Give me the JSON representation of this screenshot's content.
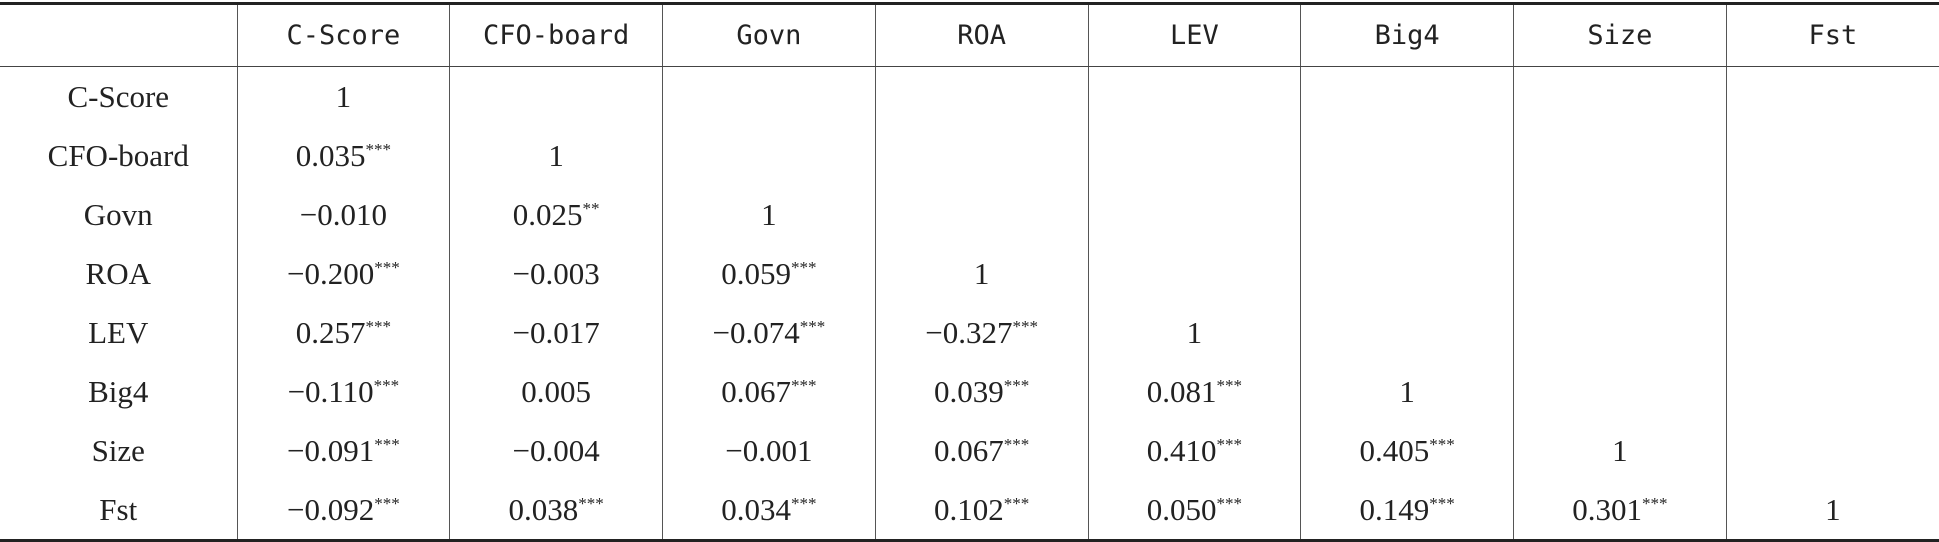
{
  "table": {
    "columns": [
      "C-Score",
      "CFO-board",
      "Govn",
      "ROA",
      "LEV",
      "Big4",
      "Size",
      "Fst"
    ],
    "rows": [
      {
        "label": "C-Score",
        "cells": [
          {
            "value": "1"
          }
        ]
      },
      {
        "label": "CFO-board",
        "cells": [
          {
            "value": "0.035",
            "stars": "***"
          },
          {
            "value": "1"
          }
        ]
      },
      {
        "label": "Govn",
        "cells": [
          {
            "value": "−0.010"
          },
          {
            "value": "0.025",
            "stars": "**"
          },
          {
            "value": "1"
          }
        ]
      },
      {
        "label": "ROA",
        "cells": [
          {
            "value": "−0.200",
            "stars": "***"
          },
          {
            "value": "−0.003"
          },
          {
            "value": "0.059",
            "stars": "***"
          },
          {
            "value": "1"
          }
        ]
      },
      {
        "label": "LEV",
        "cells": [
          {
            "value": "0.257",
            "stars": "***"
          },
          {
            "value": "−0.017"
          },
          {
            "value": "−0.074",
            "stars": "***"
          },
          {
            "value": "−0.327",
            "stars": "***"
          },
          {
            "value": "1"
          }
        ]
      },
      {
        "label": "Big4",
        "cells": [
          {
            "value": "−0.110",
            "stars": "***"
          },
          {
            "value": "0.005"
          },
          {
            "value": "0.067",
            "stars": "***"
          },
          {
            "value": "0.039",
            "stars": "***"
          },
          {
            "value": "0.081",
            "stars": "***"
          },
          {
            "value": "1"
          }
        ]
      },
      {
        "label": "Size",
        "cells": [
          {
            "value": "−0.091",
            "stars": "***"
          },
          {
            "value": "−0.004"
          },
          {
            "value": "−0.001"
          },
          {
            "value": "0.067",
            "stars": "***"
          },
          {
            "value": "0.410",
            "stars": "***"
          },
          {
            "value": "0.405",
            "stars": "***"
          },
          {
            "value": "1"
          }
        ]
      },
      {
        "label": "Fst",
        "cells": [
          {
            "value": "−0.092",
            "stars": "***"
          },
          {
            "value": "0.038",
            "stars": "***"
          },
          {
            "value": "0.034",
            "stars": "***"
          },
          {
            "value": "0.102",
            "stars": "***"
          },
          {
            "value": "0.050",
            "stars": "***"
          },
          {
            "value": "0.149",
            "stars": "***"
          },
          {
            "value": "0.301",
            "stars": "***"
          },
          {
            "value": "1"
          }
        ]
      }
    ]
  }
}
